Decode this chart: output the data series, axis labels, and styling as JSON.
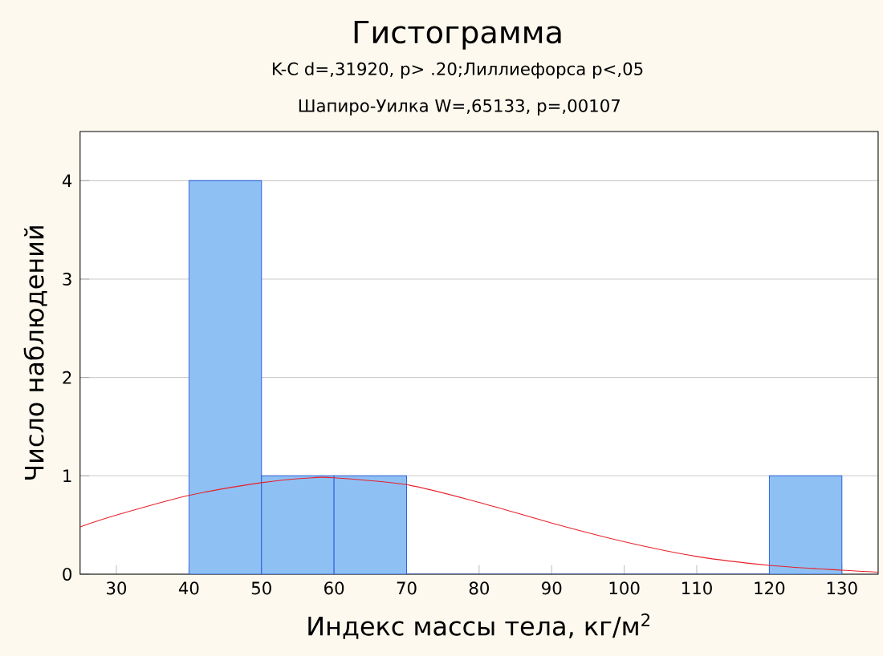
{
  "chart_data": {
    "type": "histogram",
    "title": "Гистограмма",
    "subtitle": "K-C d=,31920, p> .20;Лиллиефорса p<,05",
    "annotations": [
      "Шапиро-Уилка W=,65133, p=,00107"
    ],
    "xlabel": "Индекс массы тела, кг/м$^{2}$",
    "ylabel": "Число наблюдений",
    "bins": [
      40,
      50,
      60,
      70,
      80,
      90,
      100,
      110,
      120,
      130
    ],
    "values": [
      4,
      1,
      1,
      0,
      0,
      0,
      0,
      0,
      1
    ],
    "color": "#8ec0f4",
    "series": [
      {
        "type": "line",
        "color": "#e8202a",
        "x": [
          25,
          30,
          40,
          50,
          57,
          60,
          70,
          80,
          90,
          100,
          110,
          120,
          130,
          135
        ],
        "values": [
          0.48,
          0.6,
          0.8,
          0.93,
          0.98,
          0.98,
          0.91,
          0.73,
          0.52,
          0.33,
          0.18,
          0.09,
          0.04,
          0.02
        ]
      }
    ],
    "xlim": [
      25,
      135
    ],
    "ylim": [
      0,
      4.5
    ],
    "xticks": [
      30,
      40,
      50,
      60,
      70,
      80,
      90,
      100,
      110,
      120,
      130
    ],
    "yticks": [
      0,
      1,
      2,
      3,
      4
    ],
    "grid": "y"
  }
}
